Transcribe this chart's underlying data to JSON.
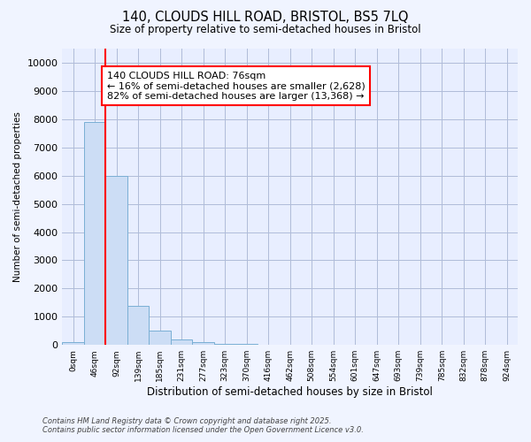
{
  "title_line1": "140, CLOUDS HILL ROAD, BRISTOL, BS5 7LQ",
  "title_line2": "Size of property relative to semi-detached houses in Bristol",
  "xlabel": "Distribution of semi-detached houses by size in Bristol",
  "ylabel": "Number of semi-detached properties",
  "bar_color": "#ccddf5",
  "bar_edge_color": "#7aafd4",
  "categories": [
    "0sqm",
    "46sqm",
    "92sqm",
    "139sqm",
    "185sqm",
    "231sqm",
    "277sqm",
    "323sqm",
    "370sqm",
    "416sqm",
    "462sqm",
    "508sqm",
    "554sqm",
    "601sqm",
    "647sqm",
    "693sqm",
    "739sqm",
    "785sqm",
    "832sqm",
    "878sqm",
    "924sqm"
  ],
  "values": [
    100,
    7900,
    6000,
    1400,
    500,
    200,
    100,
    50,
    40,
    0,
    0,
    0,
    0,
    0,
    0,
    0,
    0,
    0,
    0,
    0,
    0
  ],
  "red_line_x": 1.5,
  "annotation_text": "140 CLOUDS HILL ROAD: 76sqm\n← 16% of semi-detached houses are smaller (2,628)\n82% of semi-detached houses are larger (13,368) →",
  "ylim": [
    0,
    10500
  ],
  "yticks": [
    0,
    1000,
    2000,
    3000,
    4000,
    5000,
    6000,
    7000,
    8000,
    9000,
    10000
  ],
  "footer_line1": "Contains HM Land Registry data © Crown copyright and database right 2025.",
  "footer_line2": "Contains public sector information licensed under the Open Government Licence v3.0.",
  "background_color": "#f0f4ff",
  "plot_bg_color": "#e8eeff",
  "grid_color": "#b0bcd8"
}
